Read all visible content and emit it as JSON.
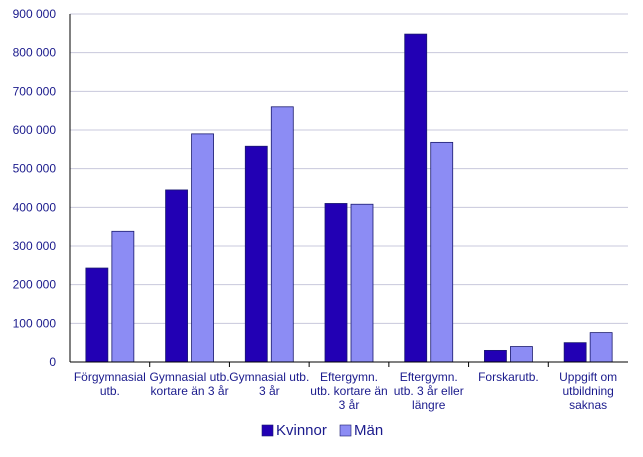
{
  "chart_data": {
    "type": "bar",
    "categories": [
      [
        "Förgymnasial",
        "utb."
      ],
      [
        "Gymnasial utb.",
        "kortare än 3 år"
      ],
      [
        "Gymnasial utb.",
        "3 år"
      ],
      [
        "Eftergymn.",
        "utb. kortare än",
        "3 år"
      ],
      [
        "Eftergymn.",
        "utb. 3 år eller",
        "längre"
      ],
      [
        "Forskarutb."
      ],
      [
        "Uppgift om",
        "utbildning",
        "saknas"
      ]
    ],
    "series": [
      {
        "name": "Kvinnor",
        "color": "#2200b4",
        "values": [
          243000,
          445000,
          558000,
          410000,
          848000,
          30000,
          50000
        ]
      },
      {
        "name": "Män",
        "color": "#8c8cf4",
        "values": [
          338000,
          590000,
          660000,
          408000,
          568000,
          40000,
          76000
        ]
      }
    ],
    "ylim": [
      0,
      900000
    ],
    "yticks": [
      0,
      100000,
      200000,
      300000,
      400000,
      500000,
      600000,
      700000,
      800000,
      900000
    ],
    "ytick_labels": [
      "0",
      "100 000",
      "200 000",
      "300 000",
      "400 000",
      "500 000",
      "600 000",
      "700 000",
      "800 000",
      "900 000"
    ],
    "grid": true,
    "legend_position": "bottom-center",
    "title": "",
    "xlabel": "",
    "ylabel": ""
  }
}
